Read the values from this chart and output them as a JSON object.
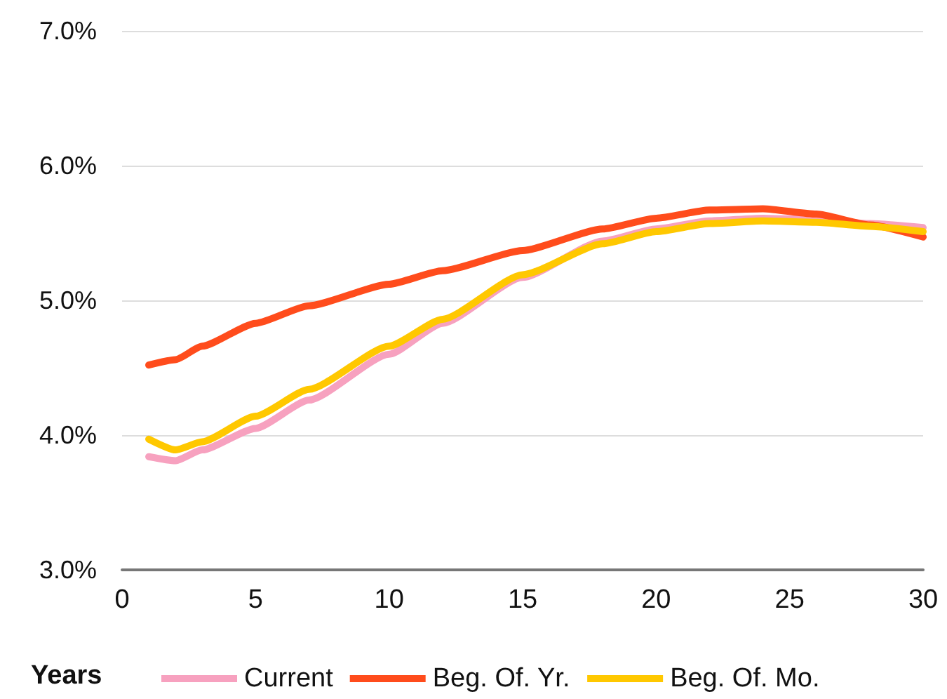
{
  "chart_data": {
    "type": "line",
    "xlabel": "Years",
    "x": [
      1,
      2,
      3,
      5,
      7,
      10,
      12,
      15,
      18,
      20,
      22,
      24,
      26,
      28,
      30
    ],
    "series": [
      {
        "name": "Current",
        "color": "#f7a1bf",
        "values": [
          3.84,
          3.81,
          3.89,
          4.05,
          4.26,
          4.6,
          4.83,
          5.17,
          5.44,
          5.53,
          5.59,
          5.61,
          5.6,
          5.57,
          5.54
        ]
      },
      {
        "name": "Beg. Of. Yr.",
        "color": "#ff4c1c",
        "values": [
          4.52,
          4.56,
          4.66,
          4.83,
          4.96,
          5.12,
          5.22,
          5.37,
          5.53,
          5.61,
          5.67,
          5.68,
          5.64,
          5.56,
          5.47
        ]
      },
      {
        "name": "Beg. Of. Mo.",
        "color": "#ffc800",
        "values": [
          3.97,
          3.89,
          3.95,
          4.14,
          4.34,
          4.66,
          4.86,
          5.19,
          5.42,
          5.51,
          5.57,
          5.59,
          5.58,
          5.55,
          5.51
        ]
      }
    ],
    "xlim": [
      0,
      30
    ],
    "xticks": [
      0,
      5,
      10,
      15,
      20,
      25,
      30
    ],
    "ylim": [
      3,
      7
    ],
    "yticks": [
      {
        "value": 3,
        "label": "3.0%"
      },
      {
        "value": 4,
        "label": "4.0%"
      },
      {
        "value": 5,
        "label": "5.0%"
      },
      {
        "value": 6,
        "label": "6.0%"
      },
      {
        "value": 7,
        "label": "7.0%"
      }
    ],
    "grid": "y",
    "legend": "bottom",
    "marker": "none",
    "line_style": "solid"
  }
}
